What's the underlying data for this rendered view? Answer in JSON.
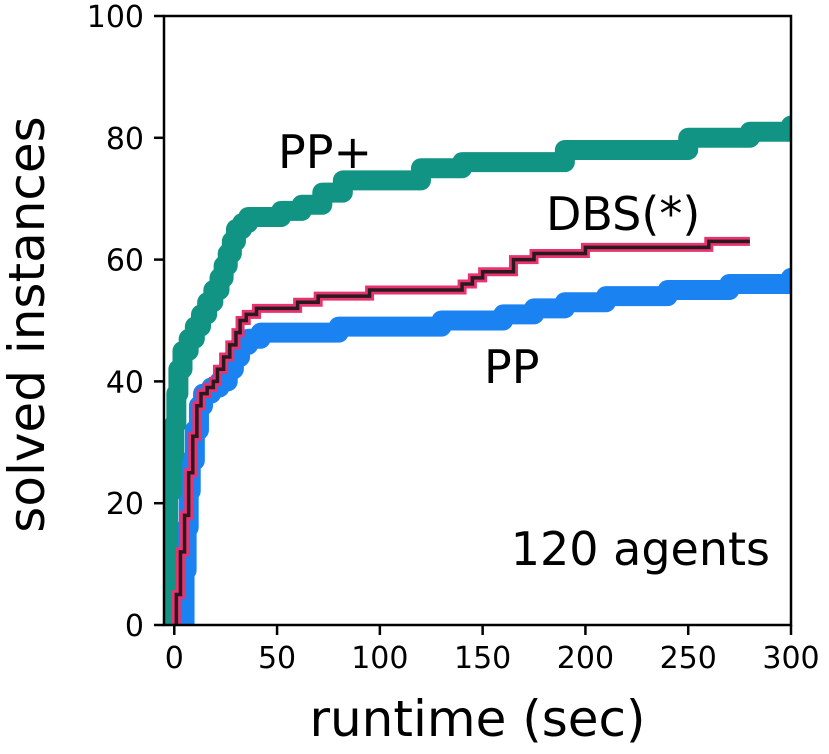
{
  "chart_data": {
    "type": "line",
    "title": "",
    "xlabel": "runtime (sec)",
    "ylabel": "solved instances",
    "xlim": [
      -5,
      300
    ],
    "ylim": [
      0,
      100
    ],
    "xticks": [
      "0",
      "50",
      "100",
      "150",
      "200",
      "250",
      "300"
    ],
    "yticks": [
      "0",
      "20",
      "40",
      "60",
      "80",
      "100"
    ],
    "grid": false,
    "legend": "none",
    "annotations": {
      "agents": "120 agents"
    },
    "series": [
      {
        "name": "PP+",
        "color": "#129485",
        "points": [
          [
            -4,
            0
          ],
          [
            -4,
            12
          ],
          [
            -3,
            22
          ],
          [
            -1,
            28
          ],
          [
            0,
            33
          ],
          [
            1,
            38
          ],
          [
            2,
            42
          ],
          [
            4,
            45
          ],
          [
            7,
            47
          ],
          [
            10,
            49
          ],
          [
            13,
            51
          ],
          [
            16,
            53
          ],
          [
            19,
            55
          ],
          [
            22,
            57
          ],
          [
            24,
            59
          ],
          [
            26,
            61
          ],
          [
            28,
            63
          ],
          [
            30,
            65
          ],
          [
            33,
            66
          ],
          [
            36,
            67
          ],
          [
            45,
            67
          ],
          [
            52,
            68
          ],
          [
            62,
            69
          ],
          [
            72,
            71
          ],
          [
            82,
            73
          ],
          [
            100,
            73
          ],
          [
            120,
            75
          ],
          [
            140,
            76
          ],
          [
            175,
            76
          ],
          [
            190,
            78
          ],
          [
            220,
            78
          ],
          [
            250,
            80
          ],
          [
            280,
            81
          ],
          [
            300,
            82
          ]
        ]
      },
      {
        "name": "DBS(*)",
        "color": "#e8336e",
        "points": [
          [
            0,
            0
          ],
          [
            1,
            5
          ],
          [
            3,
            12
          ],
          [
            5,
            18
          ],
          [
            7,
            25
          ],
          [
            9,
            31
          ],
          [
            11,
            36
          ],
          [
            13,
            38
          ],
          [
            16,
            39
          ],
          [
            19,
            40
          ],
          [
            21,
            42
          ],
          [
            24,
            44
          ],
          [
            27,
            46
          ],
          [
            30,
            48
          ],
          [
            32,
            50
          ],
          [
            35,
            51
          ],
          [
            40,
            52
          ],
          [
            50,
            52
          ],
          [
            60,
            53
          ],
          [
            70,
            54
          ],
          [
            85,
            54
          ],
          [
            95,
            55
          ],
          [
            130,
            55
          ],
          [
            140,
            56
          ],
          [
            145,
            57
          ],
          [
            150,
            58
          ],
          [
            165,
            60
          ],
          [
            175,
            61
          ],
          [
            190,
            61
          ],
          [
            200,
            62
          ],
          [
            245,
            62
          ],
          [
            260,
            63
          ],
          [
            280,
            63
          ]
        ]
      },
      {
        "name": "PP",
        "color": "#1b82f2",
        "points": [
          [
            5,
            0
          ],
          [
            5,
            9
          ],
          [
            6,
            16
          ],
          [
            7,
            22
          ],
          [
            8,
            27
          ],
          [
            10,
            32
          ],
          [
            12,
            36
          ],
          [
            14,
            38
          ],
          [
            18,
            39
          ],
          [
            22,
            40
          ],
          [
            26,
            42
          ],
          [
            29,
            44
          ],
          [
            32,
            46
          ],
          [
            36,
            47
          ],
          [
            42,
            48
          ],
          [
            60,
            48
          ],
          [
            80,
            49
          ],
          [
            110,
            49
          ],
          [
            130,
            50
          ],
          [
            160,
            51
          ],
          [
            175,
            52
          ],
          [
            190,
            53
          ],
          [
            210,
            54
          ],
          [
            240,
            55
          ],
          [
            270,
            56
          ],
          [
            300,
            57
          ]
        ]
      }
    ]
  }
}
